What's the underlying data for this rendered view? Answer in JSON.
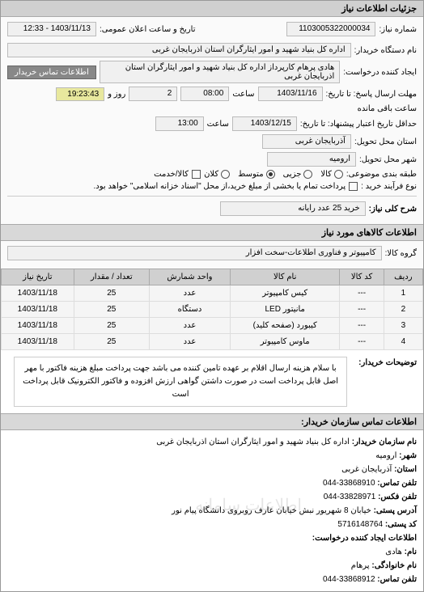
{
  "header": {
    "title": "جزئیات اطلاعات نیاز"
  },
  "form": {
    "request_no_label": "شماره نیاز:",
    "request_no": "1103005322000034",
    "announce_label": "تاریخ و ساعت اعلان عمومی:",
    "announce_value": "1403/11/13 - 12:33",
    "buyer_org_label": "نام دستگاه خریدار:",
    "buyer_org": "اداره کل بنیاد شهید و امور ایثارگران استان اذربایجان غربی",
    "creator_label": "ایجاد کننده درخواست:",
    "creator": "هادی پرهام کارپرداز اداره کل بنیاد شهید و امور ایثارگران استان اذربایجان غربی",
    "buyer_contact_btn": "اطلاعات تماس خریدار",
    "deadline_label": "مهلت ارسال پاسخ: تا تاریخ:",
    "deadline_date": "1403/11/16",
    "time_label": "ساعت",
    "deadline_time": "08:00",
    "days_label": "روز و",
    "days_value": "2",
    "remain_time": "19:23:43",
    "remain_label": "ساعت باقی مانده",
    "validity_label": "حداقل تاریخ اعتبار پیشنهاد: تا تاریخ:",
    "validity_date": "1403/12/15",
    "validity_time": "13:00",
    "delivery_prov_label": "استان محل تحویل:",
    "delivery_prov": "آذربایجان غربی",
    "delivery_city_label": "شهر محل تحویل:",
    "delivery_city": "ارومیه",
    "priority_label": "طبقه بندی موضوعی:",
    "priority_opts": [
      "کالا",
      "جزیی",
      "متوسط",
      "کلان"
    ],
    "priority_checked": 2,
    "goods_service_label": "کالا/خدمت",
    "goods_checkbox": false,
    "purchase_label": "نوع فرآیند خرید :",
    "purchase_opts": [
      "پرداخت تمام یا بخشی از مبلغ خرید،از محل \"اسناد خزانه اسلامی\" خواهد بود."
    ],
    "purchase_checkbox": false,
    "need_title_label": "شرح کلی نیاز:",
    "need_title": "خرید 25 عدد رایانه"
  },
  "items_section": {
    "title": "اطلاعات کالاهای مورد نیاز",
    "group_label": "گروه کالا:",
    "group": "کامپیوتر و فناوری اطلاعات-سخت افزار",
    "columns": [
      "ردیف",
      "کد کالا",
      "نام کالا",
      "واحد شمارش",
      "تعداد / مقدار",
      "تاریخ نیاز"
    ],
    "rows": [
      [
        "1",
        "---",
        "کیس کامپیوتر",
        "عدد",
        "25",
        "1403/11/18"
      ],
      [
        "2",
        "---",
        "مانیتور LED",
        "دستگاه",
        "25",
        "1403/11/18"
      ],
      [
        "3",
        "---",
        "کیبورد (صفحه کلید)",
        "عدد",
        "25",
        "1403/11/18"
      ],
      [
        "4",
        "---",
        "ماوس کامپیوتر",
        "عدد",
        "25",
        "1403/11/18"
      ]
    ]
  },
  "description": {
    "label": "توضیحات خریدار:",
    "text": "با سلام هزینه ارسال اقلام بر عهده تامین کننده می باشد جهت پرداخت مبلغ هزینه فاکتور با مهر اصل قابل پرداخت است در صورت داشتن گواهی ارزش افزوده و فاکتور الکترونیک قابل پرداخت است"
  },
  "contact": {
    "section_title": "اطلاعات تماس سازمان خریدار:",
    "org_label": "نام سازمان خریدار:",
    "org": "اداره کل بنیاد شهید و امور ایثارگران استان اذربایجان غربی",
    "city_label": "شهر:",
    "city": "ارومیه",
    "province_label": "استان:",
    "province": "آذربایجان غربی",
    "phone_label": "تلفن تماس:",
    "phone": "33868910-044",
    "fax_label": "تلفن فکس:",
    "fax": "33828971-044",
    "address_label": "آدرس پستی:",
    "address": "خیابان 8 شهریور نبش خیابان عارف روبروی دانشگاه پیام نور",
    "postal_label": "کد پستی:",
    "postal": "5716148764",
    "creator_section": "اطلاعات ایجاد کننده درخواست:",
    "name_label": "نام:",
    "name": "هادی",
    "family_label": "نام خانوادگی:",
    "family": "پرهام",
    "contact_phone_label": "تلفن تماس:",
    "contact_phone": "33868912-044"
  },
  "watermark": "اطلاعات سامانه"
}
